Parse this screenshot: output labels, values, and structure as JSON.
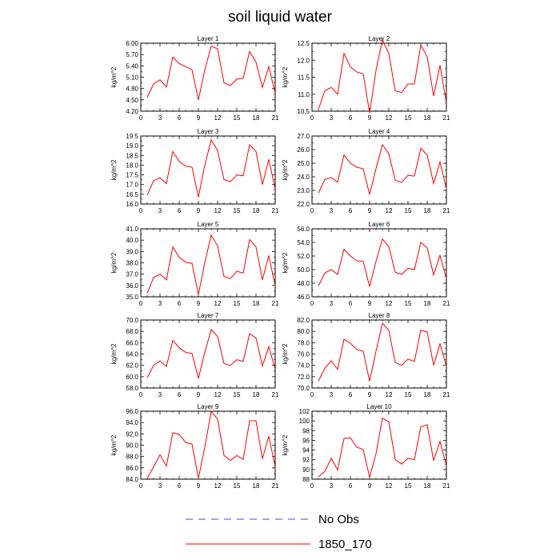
{
  "figure": {
    "title": "soil liquid water",
    "legend": [
      {
        "label": "No Obs",
        "color": "#4b4bd0",
        "dash": "dashed"
      },
      {
        "label": "1850_170",
        "color": "#ff0000",
        "dash": "solid"
      }
    ]
  },
  "chart_data": [
    {
      "type": "line",
      "title": "Layer 1",
      "xlabel": "",
      "ylabel": "kg/m^2",
      "xlim": [
        0,
        21
      ],
      "ylim": [
        4.2,
        6.0
      ],
      "xticks": [
        "0",
        "3",
        "6",
        "9",
        "12",
        "15",
        "18",
        "21"
      ],
      "yticks": [
        "4.20",
        "4.50",
        "4.80",
        "5.10",
        "5.40",
        "5.70",
        "6.00"
      ],
      "series": [
        {
          "name": "1850_170",
          "color": "#ff0000",
          "x": [
            1,
            2,
            3,
            4,
            5,
            6,
            7,
            8,
            9,
            10,
            11,
            12,
            13,
            14,
            15,
            16,
            17,
            18,
            19,
            20,
            21
          ],
          "values": [
            4.57,
            4.92,
            5.03,
            4.84,
            5.63,
            5.46,
            5.38,
            5.3,
            4.5,
            5.3,
            5.92,
            5.85,
            4.95,
            4.88,
            5.05,
            5.07,
            5.78,
            5.5,
            4.83,
            5.38,
            4.67
          ]
        }
      ]
    },
    {
      "type": "line",
      "title": "Layer 2",
      "xlabel": "",
      "ylabel": "kg/m^2",
      "xlim": [
        0,
        21
      ],
      "ylim": [
        10.5,
        12.5
      ],
      "xticks": [
        "0",
        "3",
        "6",
        "9",
        "12",
        "15",
        "18",
        "21"
      ],
      "yticks": [
        "10.5",
        "11.0",
        "11.5",
        "12.0",
        "12.5"
      ],
      "series": [
        {
          "name": "1850_170",
          "color": "#ff0000",
          "x": [
            1,
            2,
            3,
            4,
            5,
            6,
            7,
            8,
            9,
            10,
            11,
            12,
            13,
            14,
            15,
            16,
            17,
            18,
            19,
            20,
            21
          ],
          "values": [
            10.55,
            11.1,
            11.2,
            11.0,
            12.2,
            11.8,
            11.65,
            11.6,
            10.45,
            11.7,
            12.6,
            12.2,
            11.1,
            11.05,
            11.3,
            11.3,
            12.45,
            12.1,
            10.95,
            11.85,
            10.75
          ]
        }
      ]
    },
    {
      "type": "line",
      "title": "Layer 3",
      "xlabel": "",
      "ylabel": "kg/m^2",
      "xlim": [
        0,
        21
      ],
      "ylim": [
        16.0,
        19.5
      ],
      "xticks": [
        "0",
        "3",
        "6",
        "9",
        "12",
        "15",
        "18",
        "21"
      ],
      "yticks": [
        "16.0",
        "16.5",
        "17.0",
        "17.5",
        "18.0",
        "18.5",
        "19.0",
        "19.5"
      ],
      "series": [
        {
          "name": "1850_170",
          "color": "#ff0000",
          "x": [
            1,
            2,
            3,
            4,
            5,
            6,
            7,
            8,
            9,
            10,
            11,
            12,
            13,
            14,
            15,
            16,
            17,
            18,
            19,
            20,
            21
          ],
          "values": [
            16.45,
            17.2,
            17.35,
            17.05,
            18.7,
            18.2,
            17.95,
            17.9,
            16.35,
            18.0,
            19.3,
            18.75,
            17.25,
            17.15,
            17.5,
            17.45,
            19.05,
            18.7,
            17.0,
            18.3,
            16.75
          ]
        }
      ]
    },
    {
      "type": "line",
      "title": "Layer 4",
      "xlabel": "",
      "ylabel": "kg/m^2",
      "xlim": [
        0,
        21
      ],
      "ylim": [
        22.0,
        27.0
      ],
      "xticks": [
        "0",
        "3",
        "6",
        "9",
        "12",
        "15",
        "18",
        "21"
      ],
      "yticks": [
        "22.0",
        "23.0",
        "24.0",
        "25.0",
        "26.0",
        "27.0"
      ],
      "series": [
        {
          "name": "1850_170",
          "color": "#ff0000",
          "x": [
            1,
            2,
            3,
            4,
            5,
            6,
            7,
            8,
            9,
            10,
            11,
            12,
            13,
            14,
            15,
            16,
            17,
            18,
            19,
            20,
            21
          ],
          "values": [
            22.8,
            23.8,
            23.95,
            23.6,
            25.6,
            25.0,
            24.7,
            24.6,
            22.7,
            24.6,
            26.35,
            25.7,
            23.75,
            23.6,
            24.1,
            24.05,
            26.1,
            25.6,
            23.5,
            25.1,
            23.1
          ]
        }
      ]
    },
    {
      "type": "line",
      "title": "Layer 5",
      "xlabel": "",
      "ylabel": "kg/m^2",
      "xlim": [
        0,
        21
      ],
      "ylim": [
        35.0,
        41.0
      ],
      "xticks": [
        "0",
        "3",
        "6",
        "9",
        "12",
        "15",
        "18",
        "21"
      ],
      "yticks": [
        "35.0",
        "36.0",
        "37.0",
        "38.0",
        "39.0",
        "40.0",
        "41.0"
      ],
      "series": [
        {
          "name": "1850_170",
          "color": "#ff0000",
          "x": [
            1,
            2,
            3,
            4,
            5,
            6,
            7,
            8,
            9,
            10,
            11,
            12,
            13,
            14,
            15,
            16,
            17,
            18,
            19,
            20,
            21
          ],
          "values": [
            35.3,
            36.7,
            37.0,
            36.5,
            39.4,
            38.5,
            38.05,
            37.95,
            35.2,
            38.0,
            40.45,
            39.5,
            36.8,
            36.6,
            37.25,
            37.1,
            40.05,
            39.4,
            36.5,
            38.65,
            35.95
          ]
        }
      ]
    },
    {
      "type": "line",
      "title": "Layer 6",
      "xlabel": "",
      "ylabel": "kg/m^2",
      "xlim": [
        0,
        21
      ],
      "ylim": [
        46.0,
        56.0
      ],
      "xticks": [
        "0",
        "3",
        "6",
        "9",
        "12",
        "15",
        "18",
        "21"
      ],
      "yticks": [
        "46.0",
        "48.0",
        "50.0",
        "52.0",
        "54.0",
        "56.0"
      ],
      "series": [
        {
          "name": "1850_170",
          "color": "#ff0000",
          "x": [
            1,
            2,
            3,
            4,
            5,
            6,
            7,
            8,
            9,
            10,
            11,
            12,
            13,
            14,
            15,
            16,
            17,
            18,
            19,
            20,
            21
          ],
          "values": [
            47.6,
            49.5,
            50.0,
            49.3,
            53.0,
            52.0,
            51.3,
            51.2,
            47.5,
            51.2,
            54.5,
            53.4,
            49.6,
            49.3,
            50.2,
            50.0,
            54.0,
            53.2,
            49.2,
            52.1,
            48.7
          ]
        }
      ]
    },
    {
      "type": "line",
      "title": "Layer 7",
      "xlabel": "",
      "ylabel": "kg/m^2",
      "xlim": [
        0,
        21
      ],
      "ylim": [
        58.0,
        70.0
      ],
      "xticks": [
        "0",
        "3",
        "6",
        "9",
        "12",
        "15",
        "18",
        "21"
      ],
      "yticks": [
        "58.0",
        "60.0",
        "62.0",
        "64.0",
        "66.0",
        "68.0",
        "70.0"
      ],
      "series": [
        {
          "name": "1850_170",
          "color": "#ff0000",
          "x": [
            1,
            2,
            3,
            4,
            5,
            6,
            7,
            8,
            9,
            10,
            11,
            12,
            13,
            14,
            15,
            16,
            17,
            18,
            19,
            20,
            21
          ],
          "values": [
            59.8,
            62.0,
            62.8,
            61.8,
            66.4,
            65.1,
            64.3,
            64.1,
            59.7,
            64.3,
            68.3,
            67.1,
            62.3,
            62.0,
            63.0,
            62.7,
            67.6,
            66.8,
            61.9,
            65.3,
            61.3
          ]
        }
      ]
    },
    {
      "type": "line",
      "title": "Layer 8",
      "xlabel": "",
      "ylabel": "kg/m^2",
      "xlim": [
        0,
        21
      ],
      "ylim": [
        70.0,
        82.0
      ],
      "xticks": [
        "0",
        "3",
        "6",
        "9",
        "12",
        "15",
        "18",
        "21"
      ],
      "yticks": [
        "70.0",
        "72.0",
        "74.0",
        "76.0",
        "78.0",
        "80.0",
        "82.0"
      ],
      "series": [
        {
          "name": "1850_170",
          "color": "#ff0000",
          "x": [
            1,
            2,
            3,
            4,
            5,
            6,
            7,
            8,
            9,
            10,
            11,
            12,
            13,
            14,
            15,
            16,
            17,
            18,
            19,
            20,
            21
          ],
          "values": [
            71.2,
            73.5,
            74.8,
            73.3,
            78.6,
            77.9,
            76.8,
            76.5,
            71.2,
            76.5,
            81.4,
            80.2,
            74.5,
            74.0,
            75.1,
            74.7,
            80.2,
            79.9,
            74.0,
            77.8,
            73.8
          ]
        }
      ]
    },
    {
      "type": "line",
      "title": "Layer 9",
      "xlabel": "",
      "ylabel": "kg/m^2",
      "xlim": [
        0,
        21
      ],
      "ylim": [
        84.0,
        96.0
      ],
      "xticks": [
        "0",
        "3",
        "6",
        "9",
        "12",
        "15",
        "18",
        "21"
      ],
      "yticks": [
        "84.0",
        "86.0",
        "88.0",
        "90.0",
        "92.0",
        "94.0",
        "96.0"
      ],
      "series": [
        {
          "name": "1850_170",
          "color": "#ff0000",
          "x": [
            1,
            2,
            3,
            4,
            5,
            6,
            7,
            8,
            9,
            10,
            11,
            12,
            13,
            14,
            15,
            16,
            17,
            18,
            19,
            20,
            21
          ],
          "values": [
            84.1,
            86.2,
            88.3,
            86.3,
            92.2,
            91.9,
            90.5,
            90.2,
            84.2,
            89.6,
            96.0,
            94.6,
            88.2,
            87.3,
            88.2,
            87.5,
            94.3,
            94.3,
            87.6,
            91.6,
            86.2
          ]
        }
      ]
    },
    {
      "type": "line",
      "title": "Layer 10",
      "xlabel": "",
      "ylabel": "kg/m^2",
      "xlim": [
        0,
        21
      ],
      "ylim": [
        88,
        102
      ],
      "xticks": [
        "0",
        "3",
        "6",
        "9",
        "12",
        "15",
        "18",
        "21"
      ],
      "yticks": [
        "88",
        "90",
        "92",
        "94",
        "96",
        "98",
        "100",
        "102"
      ],
      "series": [
        {
          "name": "1850_170",
          "color": "#ff0000",
          "x": [
            1,
            2,
            3,
            4,
            5,
            6,
            7,
            8,
            9,
            10,
            11,
            12,
            13,
            14,
            15,
            16,
            17,
            18,
            19,
            20,
            21
          ],
          "values": [
            88.5,
            89.6,
            92.3,
            89.9,
            96.4,
            96.5,
            94.6,
            94.1,
            88.4,
            93.2,
            100.6,
            99.8,
            92.1,
            91.1,
            92.3,
            92.0,
            98.8,
            99.2,
            91.8,
            95.8,
            90.8
          ]
        }
      ]
    }
  ]
}
